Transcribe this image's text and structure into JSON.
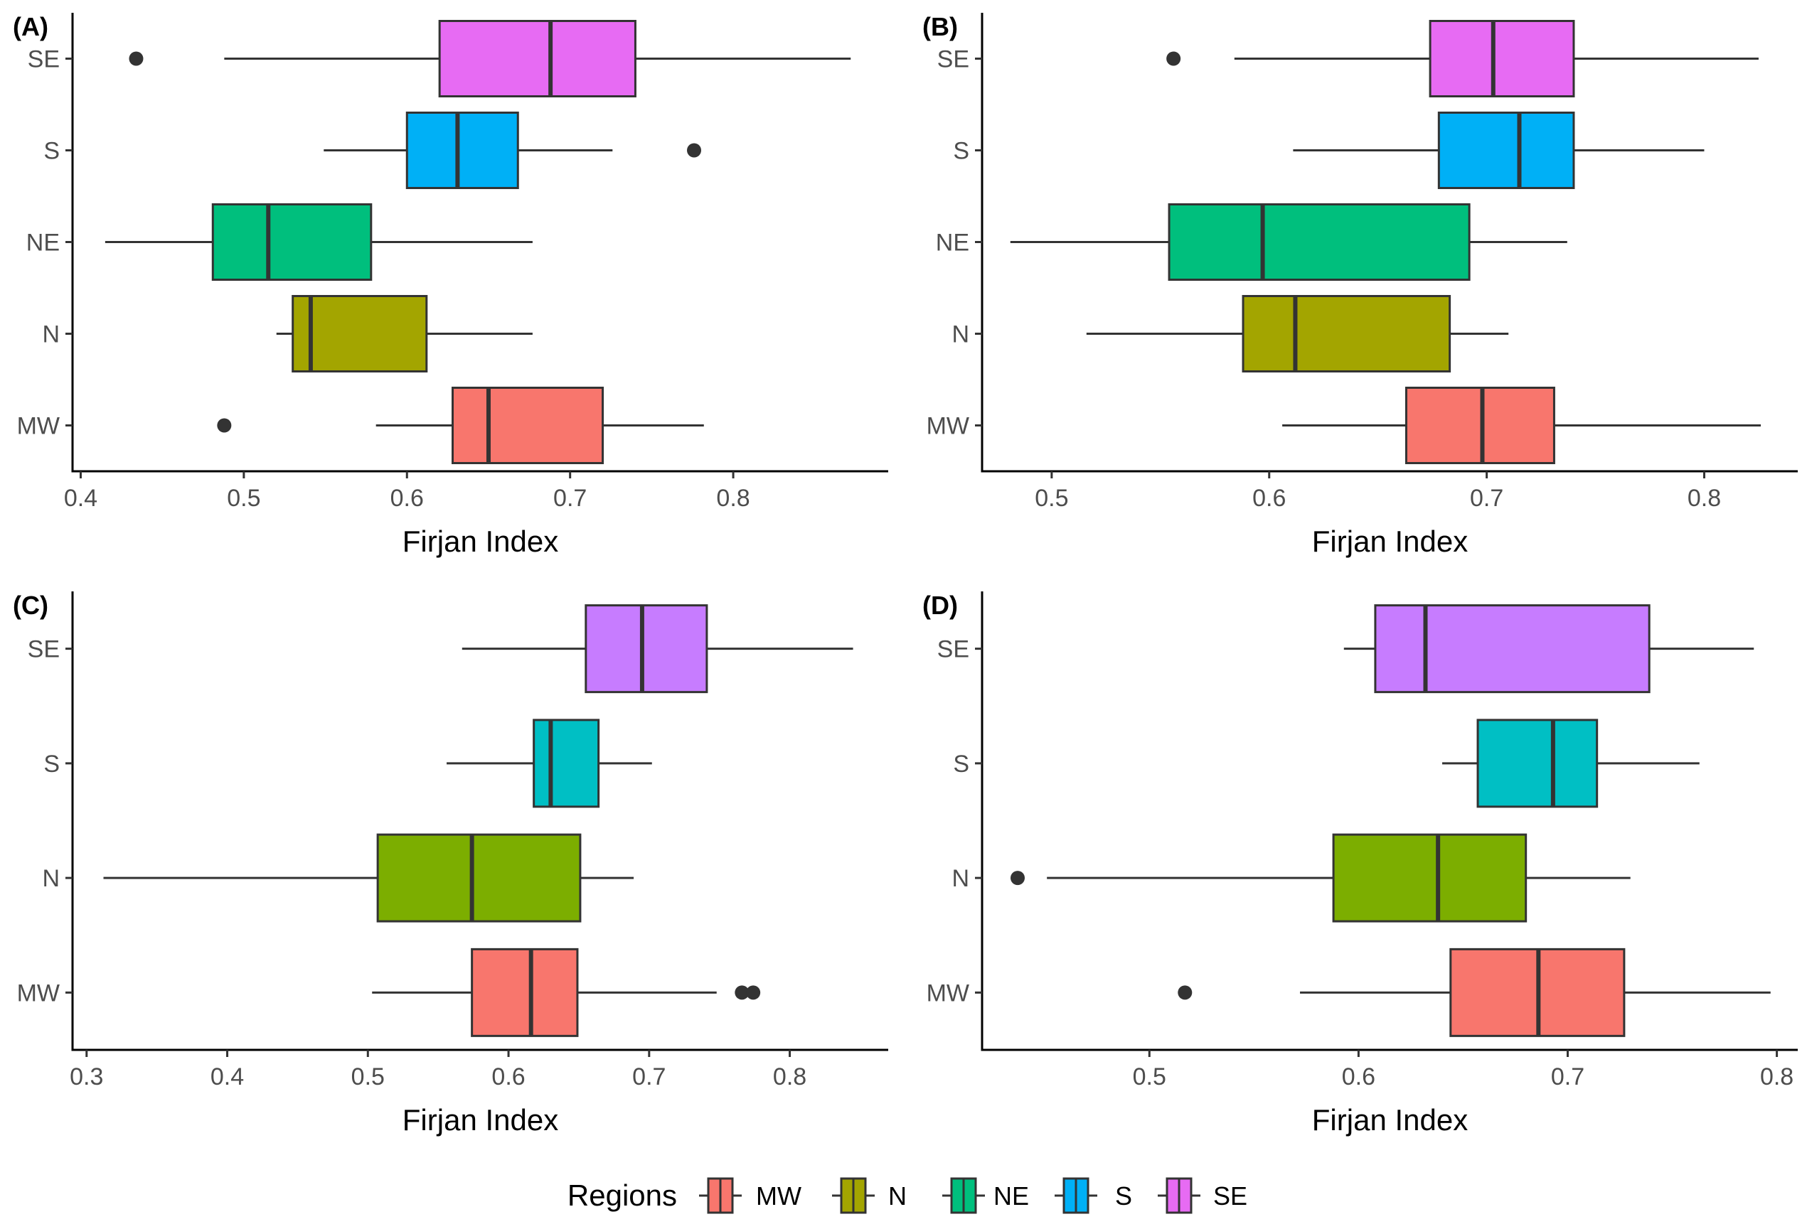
{
  "legend": {
    "title": "Regions",
    "items": [
      {
        "label": "MW",
        "color": "#F8766D"
      },
      {
        "label": "N",
        "color": "#A3A500"
      },
      {
        "label": "NE",
        "color": "#00BF7D"
      },
      {
        "label": "S",
        "color": "#00B0F6"
      },
      {
        "label": "SE",
        "color": "#E76BF3"
      }
    ]
  },
  "chart_data": [
    {
      "type": "box",
      "panel": "(A)",
      "xlabel": "Firjan Index",
      "xlim": [
        0.395,
        0.895
      ],
      "xticks": [
        0.4,
        0.5,
        0.6,
        0.7,
        0.8
      ],
      "xtick_labels": [
        "0.4",
        "0.5",
        "0.6",
        "0.7",
        "0.8"
      ],
      "categories": [
        "MW",
        "N",
        "NE",
        "S",
        "SE"
      ],
      "boxes": [
        {
          "region": "MW",
          "color": "#F8766D",
          "whisker_low": 0.581,
          "q1": 0.628,
          "median": 0.65,
          "q3": 0.72,
          "whisker_high": 0.782,
          "outliers": [
            0.488
          ]
        },
        {
          "region": "N",
          "color": "#A3A500",
          "whisker_low": 0.52,
          "q1": 0.53,
          "median": 0.541,
          "q3": 0.612,
          "whisker_high": 0.677,
          "outliers": []
        },
        {
          "region": "NE",
          "color": "#00BF7D",
          "whisker_low": 0.415,
          "q1": 0.481,
          "median": 0.515,
          "q3": 0.578,
          "whisker_high": 0.677,
          "outliers": []
        },
        {
          "region": "S",
          "color": "#00B0F6",
          "whisker_low": 0.549,
          "q1": 0.6,
          "median": 0.631,
          "q3": 0.668,
          "whisker_high": 0.726,
          "outliers": [
            0.776
          ]
        },
        {
          "region": "SE",
          "color": "#E76BF3",
          "whisker_low": 0.488,
          "q1": 0.62,
          "median": 0.688,
          "q3": 0.74,
          "whisker_high": 0.872,
          "outliers": [
            0.434
          ]
        }
      ]
    },
    {
      "type": "box",
      "panel": "(B)",
      "xlabel": "Firjan Index",
      "xlim": [
        0.468,
        0.843
      ],
      "xticks": [
        0.5,
        0.6,
        0.7,
        0.8
      ],
      "xtick_labels": [
        "0.5",
        "0.6",
        "0.7",
        "0.8"
      ],
      "categories": [
        "MW",
        "N",
        "NE",
        "S",
        "SE"
      ],
      "boxes": [
        {
          "region": "MW",
          "color": "#F8766D",
          "whisker_low": 0.606,
          "q1": 0.663,
          "median": 0.698,
          "q3": 0.731,
          "whisker_high": 0.826,
          "outliers": []
        },
        {
          "region": "N",
          "color": "#A3A500",
          "whisker_low": 0.516,
          "q1": 0.588,
          "median": 0.612,
          "q3": 0.683,
          "whisker_high": 0.71,
          "outliers": []
        },
        {
          "region": "NE",
          "color": "#00BF7D",
          "whisker_low": 0.481,
          "q1": 0.554,
          "median": 0.597,
          "q3": 0.692,
          "whisker_high": 0.737,
          "outliers": []
        },
        {
          "region": "S",
          "color": "#00B0F6",
          "whisker_low": 0.611,
          "q1": 0.678,
          "median": 0.715,
          "q3": 0.74,
          "whisker_high": 0.8,
          "outliers": []
        },
        {
          "region": "SE",
          "color": "#E76BF3",
          "whisker_low": 0.584,
          "q1": 0.674,
          "median": 0.703,
          "q3": 0.74,
          "whisker_high": 0.825,
          "outliers": [
            0.556
          ]
        }
      ]
    },
    {
      "type": "box",
      "panel": "(C)",
      "xlabel": "Firjan Index",
      "xlim": [
        0.29,
        0.87
      ],
      "xticks": [
        0.3,
        0.4,
        0.5,
        0.6,
        0.7,
        0.8
      ],
      "xtick_labels": [
        "0.3",
        "0.4",
        "0.5",
        "0.6",
        "0.7",
        "0.8"
      ],
      "categories": [
        "MW",
        "N",
        "S",
        "SE"
      ],
      "boxes": [
        {
          "region": "MW",
          "color": "#F8766D",
          "whisker_low": 0.503,
          "q1": 0.574,
          "median": 0.616,
          "q3": 0.649,
          "whisker_high": 0.748,
          "outliers": [
            0.766,
            0.774
          ]
        },
        {
          "region": "N",
          "color": "#7CAE00",
          "whisker_low": 0.312,
          "q1": 0.507,
          "median": 0.574,
          "q3": 0.651,
          "whisker_high": 0.689,
          "outliers": []
        },
        {
          "region": "S",
          "color": "#00BFC4",
          "whisker_low": 0.556,
          "q1": 0.618,
          "median": 0.63,
          "q3": 0.664,
          "whisker_high": 0.702,
          "outliers": []
        },
        {
          "region": "SE",
          "color": "#C77CFF",
          "whisker_low": 0.567,
          "q1": 0.655,
          "median": 0.695,
          "q3": 0.741,
          "whisker_high": 0.845,
          "outliers": []
        }
      ]
    },
    {
      "type": "box",
      "panel": "(D)",
      "xlabel": "Firjan Index",
      "xlim": [
        0.42,
        0.81
      ],
      "xticks": [
        0.5,
        0.6,
        0.7,
        0.8
      ],
      "xtick_labels": [
        "0.5",
        "0.6",
        "0.7",
        "0.8"
      ],
      "categories": [
        "MW",
        "N",
        "S",
        "SE"
      ],
      "boxes": [
        {
          "region": "MW",
          "color": "#F8766D",
          "whisker_low": 0.572,
          "q1": 0.644,
          "median": 0.686,
          "q3": 0.727,
          "whisker_high": 0.797,
          "outliers": [
            0.517
          ]
        },
        {
          "region": "N",
          "color": "#7CAE00",
          "whisker_low": 0.451,
          "q1": 0.588,
          "median": 0.638,
          "q3": 0.68,
          "whisker_high": 0.73,
          "outliers": [
            0.437
          ]
        },
        {
          "region": "S",
          "color": "#00BFC4",
          "whisker_low": 0.64,
          "q1": 0.657,
          "median": 0.693,
          "q3": 0.714,
          "whisker_high": 0.763,
          "outliers": []
        },
        {
          "region": "SE",
          "color": "#C77CFF",
          "whisker_low": 0.593,
          "q1": 0.608,
          "median": 0.632,
          "q3": 0.739,
          "whisker_high": 0.789,
          "outliers": []
        }
      ]
    }
  ]
}
